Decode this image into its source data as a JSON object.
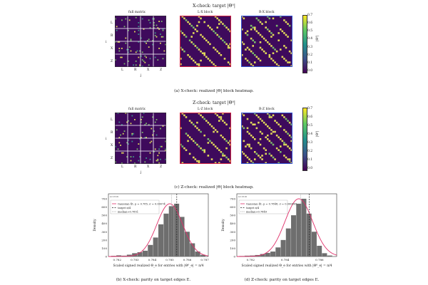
{
  "xcheck": {
    "title": "X-check: target |Θ⁰|",
    "full_title": "full matrix",
    "left_title": "L-X block",
    "right_title": "R-X block",
    "row_labels": [
      "L",
      "R",
      "X",
      "Z"
    ],
    "col_labels": [
      "L",
      "R",
      "X",
      "Z"
    ],
    "ylabel": "i",
    "xlabel": "j",
    "caption": "(a) X-check: realized |Θ| block heatmap."
  },
  "zcheck": {
    "title": "Z-check: target |Θ⁰|",
    "full_title": "full matrix",
    "left_title": "L-Z block",
    "right_title": "R-Z block",
    "row_labels": [
      "L",
      "R",
      "X",
      "Z"
    ],
    "col_labels": [
      "L",
      "R",
      "X",
      "Z"
    ],
    "ylabel": "i",
    "xlabel": "j",
    "caption": "(c) Z-check: realized |Θ| block heatmap."
  },
  "colorbar": {
    "label": "|Θ⁰|",
    "ticks": [
      "0.7",
      "0.6",
      "0.5",
      "0.4",
      "0.3",
      "0.2",
      "0.1",
      "0.0"
    ]
  },
  "hist_x": {
    "corner": "n=1516",
    "legend": [
      "Gaussian fit: μ = 0.785, σ = 0.00074",
      "target π/4",
      "median=0.7851"
    ],
    "ylabel": "Density",
    "xlabel": "Scaled signed realized Θ_e for entries with |Θ⁰_e| = π/4",
    "xticks": [
      "0.782",
      "0.783",
      "0.784",
      "0.785",
      "0.786",
      "0.787"
    ],
    "yticks": [
      "700",
      "600",
      "500",
      "400",
      "300",
      "200",
      "100",
      "0"
    ],
    "caption": "(b) X-check: parity on target edges E."
  },
  "hist_z": {
    "corner": "n=1516",
    "legend": [
      "Gaussian fit: μ = 0.7848, σ = 0.000805",
      "target π/4",
      "median=0.7849"
    ],
    "ylabel": "Density",
    "xlabel": "Scaled signed realized Θ_e for entries with |Θ⁰_e| = π/4",
    "xticks": [
      "0.782",
      "0.784",
      "0.786"
    ],
    "yticks": [
      "700",
      "600",
      "500",
      "400",
      "300",
      "200",
      "100",
      "0"
    ],
    "caption": "(d) Z-check: parity on target edges E."
  },
  "chart_data": [
    {
      "type": "heatmap",
      "title": "X-check: target |Θ⁰|",
      "panels": [
        "full matrix",
        "L-X block",
        "R-X block"
      ],
      "row_labels": [
        "L",
        "R",
        "X",
        "Z"
      ],
      "col_labels": [
        "L",
        "R",
        "X",
        "Z"
      ],
      "color_range": [
        0,
        0.75
      ]
    },
    {
      "type": "heatmap",
      "title": "Z-check: target |Θ⁰|",
      "panels": [
        "full matrix",
        "L-Z block",
        "R-Z block"
      ],
      "row_labels": [
        "L",
        "R",
        "X",
        "Z"
      ],
      "col_labels": [
        "L",
        "R",
        "X",
        "Z"
      ],
      "color_range": [
        0,
        0.75
      ]
    },
    {
      "type": "bar",
      "ylabel": "Density",
      "xlim": [
        0.7815,
        0.7872
      ],
      "ylim": [
        0,
        760
      ],
      "gaussian": {
        "mu": 0.785,
        "sigma": 0.00074
      },
      "target": 0.7854,
      "median": 0.7851,
      "x": [
        0.7818,
        0.7821,
        0.7824,
        0.7827,
        0.783,
        0.7833,
        0.7836,
        0.7839,
        0.7842,
        0.7845,
        0.7848,
        0.7851,
        0.7854,
        0.7857,
        0.786,
        0.7863,
        0.7866,
        0.7869
      ],
      "values": [
        8,
        14,
        10,
        22,
        40,
        52,
        70,
        140,
        230,
        390,
        520,
        610,
        640,
        480,
        300,
        160,
        60,
        20
      ]
    },
    {
      "type": "bar",
      "ylabel": "Density",
      "xlim": [
        0.7812,
        0.787
      ],
      "ylim": [
        0,
        760
      ],
      "gaussian": {
        "mu": 0.7848,
        "sigma": 0.000805
      },
      "target": 0.7854,
      "median": 0.7849,
      "x": [
        0.7815,
        0.7818,
        0.7821,
        0.7824,
        0.7827,
        0.783,
        0.7833,
        0.7836,
        0.7839,
        0.7842,
        0.7845,
        0.7848,
        0.7851,
        0.7854,
        0.7857,
        0.786,
        0.7863,
        0.7866
      ],
      "values": [
        6,
        10,
        12,
        18,
        30,
        44,
        60,
        110,
        200,
        340,
        500,
        640,
        700,
        520,
        300,
        130,
        40,
        12
      ]
    }
  ]
}
